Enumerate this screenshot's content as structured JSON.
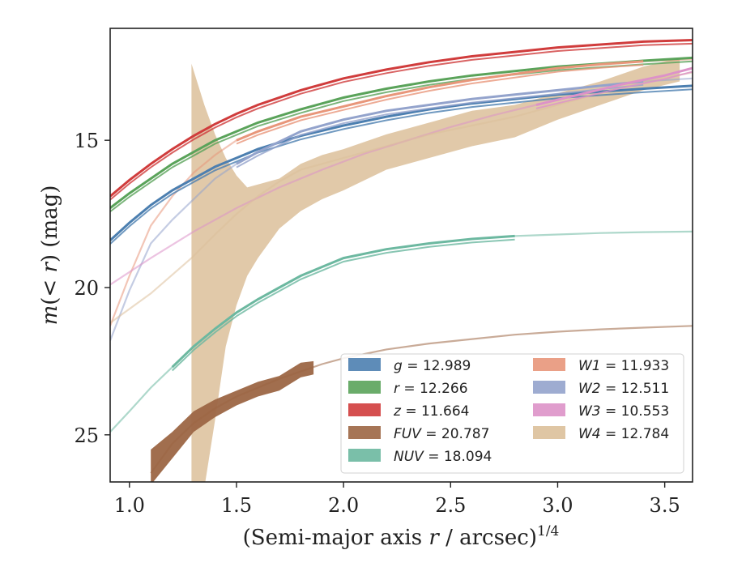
{
  "chart_data": {
    "type": "line",
    "xlabel_main": "(Semi-major axis",
    "xlabel_var": "r",
    "xlabel_rest": "/ arcsec)",
    "xlabel_sup": "1/4",
    "ylabel_main": "m",
    "ylabel_paren": "(",
    "ylabel_lt": "< ",
    "ylabel_r": "r",
    "ylabel_close": ")",
    "ylabel_unit": "(mag)",
    "xlim": [
      0.91,
      3.63
    ],
    "ylim": [
      26.6,
      11.2
    ],
    "y_inverted": true,
    "xticks": [
      "1.0",
      "1.5",
      "2.0",
      "2.5",
      "3.0",
      "3.5"
    ],
    "yticks": [
      "15",
      "20",
      "25"
    ],
    "xtick_values": [
      1.0,
      1.5,
      2.0,
      2.5,
      3.0,
      3.5
    ],
    "ytick_values": [
      15,
      20,
      25
    ],
    "grid": false,
    "legend_position": "lower-right",
    "series": [
      {
        "name": "g",
        "label_value": "12.989",
        "color": "#4c7fb0",
        "x": [
          0.91,
          1.0,
          1.1,
          1.2,
          1.3,
          1.4,
          1.5,
          1.6,
          1.8,
          2.0,
          2.2,
          2.4,
          2.6,
          2.8,
          3.0,
          3.2,
          3.4,
          3.63
        ],
        "y": [
          18.4,
          17.8,
          17.2,
          16.7,
          16.3,
          15.9,
          15.6,
          15.3,
          14.85,
          14.5,
          14.2,
          13.95,
          13.75,
          13.6,
          13.45,
          13.35,
          13.25,
          13.15
        ]
      },
      {
        "name": "r",
        "label_value": "12.266",
        "color": "#5aa35a",
        "x": [
          0.91,
          1.0,
          1.1,
          1.2,
          1.3,
          1.4,
          1.5,
          1.6,
          1.8,
          2.0,
          2.2,
          2.4,
          2.6,
          2.8,
          3.0,
          3.2,
          3.4,
          3.63
        ],
        "y": [
          17.3,
          16.8,
          16.3,
          15.8,
          15.4,
          15.0,
          14.7,
          14.4,
          13.95,
          13.55,
          13.25,
          13.0,
          12.8,
          12.65,
          12.5,
          12.4,
          12.3,
          12.2
        ]
      },
      {
        "name": "z",
        "label_value": "11.664",
        "color": "#d03c3c",
        "x": [
          0.91,
          1.0,
          1.1,
          1.2,
          1.3,
          1.4,
          1.5,
          1.6,
          1.8,
          2.0,
          2.2,
          2.4,
          2.6,
          2.8,
          3.0,
          3.2,
          3.4,
          3.63
        ],
        "y": [
          16.9,
          16.35,
          15.8,
          15.3,
          14.85,
          14.45,
          14.1,
          13.8,
          13.3,
          12.9,
          12.6,
          12.35,
          12.15,
          12.0,
          11.85,
          11.75,
          11.65,
          11.6
        ]
      },
      {
        "name": "FUV",
        "label_value": "20.787",
        "color": "#9c6644",
        "x": [
          1.1,
          1.2,
          1.3,
          1.4,
          1.5,
          1.6,
          1.7,
          1.8,
          1.9,
          2.0,
          2.2,
          2.4,
          2.6,
          2.8,
          3.0,
          3.2,
          3.4,
          3.63
        ],
        "y": [
          26.3,
          25.3,
          24.6,
          24.1,
          23.7,
          23.4,
          23.1,
          22.85,
          22.6,
          22.4,
          22.1,
          21.9,
          21.75,
          21.6,
          21.5,
          21.42,
          21.36,
          21.3
        ]
      },
      {
        "name": "NUV",
        "label_value": "18.094",
        "color": "#6cb8a0",
        "x": [
          0.91,
          1.0,
          1.1,
          1.2,
          1.3,
          1.4,
          1.5,
          1.6,
          1.7,
          1.8,
          1.9,
          2.0,
          2.2,
          2.4,
          2.6,
          2.8,
          3.0,
          3.2,
          3.4,
          3.63
        ],
        "y": [
          24.9,
          24.2,
          23.4,
          22.7,
          22.0,
          21.4,
          20.85,
          20.4,
          20.0,
          19.6,
          19.3,
          19.0,
          18.7,
          18.5,
          18.35,
          18.25,
          18.2,
          18.15,
          18.12,
          18.1
        ]
      },
      {
        "name": "W1",
        "label_value": "11.933",
        "color": "#e8967a",
        "x": [
          0.91,
          1.0,
          1.1,
          1.2,
          1.3,
          1.4,
          1.5,
          1.6,
          1.8,
          2.0,
          2.2,
          2.4,
          2.6,
          2.8,
          3.0,
          3.2,
          3.4,
          3.63
        ],
        "y": [
          21.3,
          19.6,
          17.9,
          16.9,
          16.1,
          15.5,
          15.0,
          14.7,
          14.2,
          13.85,
          13.5,
          13.2,
          12.95,
          12.75,
          12.55,
          12.42,
          12.32,
          12.25
        ]
      },
      {
        "name": "W2",
        "label_value": "12.511",
        "color": "#93a3cc",
        "x": [
          0.91,
          1.0,
          1.1,
          1.2,
          1.3,
          1.4,
          1.5,
          1.6,
          1.8,
          2.0,
          2.2,
          2.4,
          2.6,
          2.8,
          3.0,
          3.2,
          3.4,
          3.63
        ],
        "y": [
          21.8,
          20.1,
          18.5,
          17.7,
          17.0,
          16.3,
          15.8,
          15.4,
          14.7,
          14.3,
          14.0,
          13.8,
          13.6,
          13.45,
          13.3,
          13.15,
          13.0,
          12.9
        ]
      },
      {
        "name": "W3",
        "label_value": "10.553",
        "color": "#dd92c8",
        "x": [
          0.91,
          1.1,
          1.3,
          1.5,
          1.7,
          1.9,
          2.1,
          2.3,
          2.5,
          2.7,
          2.9,
          3.1,
          3.3,
          3.5,
          3.63
        ],
        "y": [
          19.9,
          19.0,
          18.1,
          17.3,
          16.6,
          16.0,
          15.45,
          15.0,
          14.55,
          14.15,
          13.8,
          13.45,
          13.1,
          12.8,
          12.55
        ]
      },
      {
        "name": "W4",
        "label_value": "12.784",
        "color": "#dcc09a",
        "x": [
          0.91,
          1.1,
          1.29,
          1.4,
          1.5,
          1.6,
          1.7,
          1.8,
          2.0,
          2.2,
          2.4,
          2.6,
          2.8,
          3.0,
          3.2,
          3.4,
          3.63
        ],
        "y": [
          21.2,
          20.2,
          19.0,
          18.2,
          17.5,
          16.9,
          16.4,
          16.0,
          15.6,
          15.2,
          14.8,
          14.5,
          14.2,
          13.8,
          13.4,
          13.0,
          12.7
        ]
      }
    ],
    "legend_left": [
      {
        "name": "g",
        "value": "12.989"
      },
      {
        "name": "r",
        "value": "12.266"
      },
      {
        "name": "z",
        "value": "11.664"
      },
      {
        "name": "FUV",
        "value": "20.787"
      },
      {
        "name": "NUV",
        "value": "18.094"
      }
    ],
    "legend_right": [
      {
        "name": "W1",
        "value": "11.933"
      },
      {
        "name": "W2",
        "value": "12.511"
      },
      {
        "name": "W3",
        "value": "10.553"
      },
      {
        "name": "W4",
        "value": "12.784"
      }
    ]
  }
}
